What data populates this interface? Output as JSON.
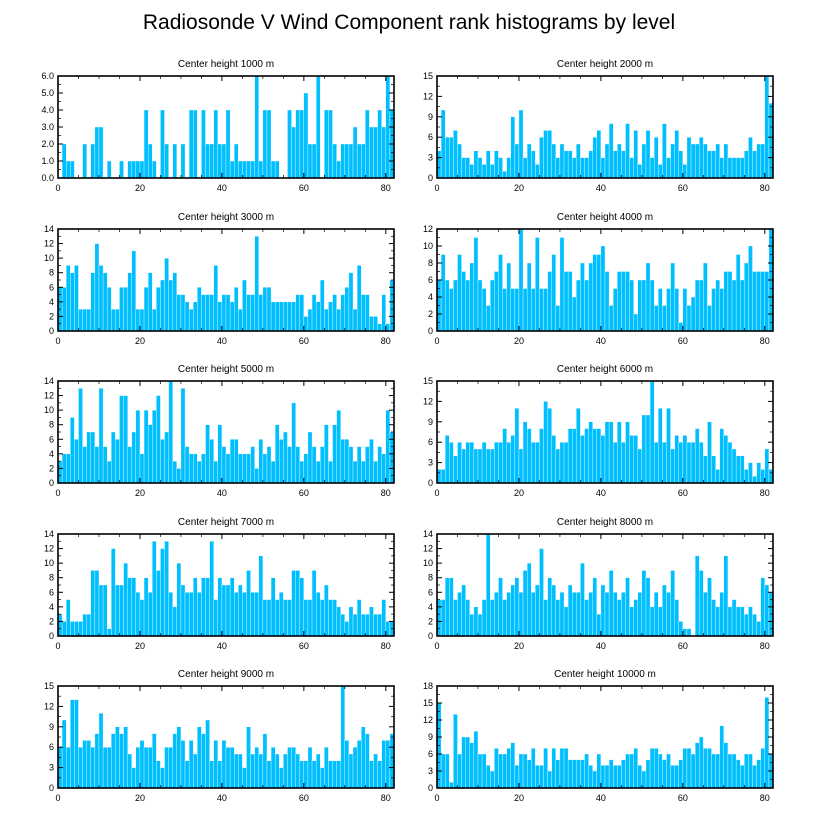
{
  "figure_title": "Radiosonde V Wind Component rank histograms by level",
  "chart_data": [
    {
      "type": "bar",
      "title": "Center height 1000 m",
      "xlim": [
        0,
        82
      ],
      "ylim": [
        0,
        6
      ],
      "xticks": [
        0,
        20,
        40,
        60,
        80
      ],
      "yticks": [
        0,
        1,
        2,
        3,
        4,
        5,
        6
      ],
      "ytick_labels": [
        "0.0",
        "1.0",
        "2.0",
        "3.0",
        "4.0",
        "5.0",
        "6.0"
      ],
      "values": [
        0,
        2,
        1,
        1,
        0,
        0,
        2,
        0,
        2,
        3,
        3,
        0,
        1,
        0,
        0,
        1,
        0,
        1,
        1,
        1,
        1,
        4,
        2,
        1,
        0,
        4,
        2,
        0,
        2,
        0,
        2,
        0,
        4,
        4,
        0,
        4,
        2,
        2,
        4,
        2,
        2,
        4,
        1,
        2,
        1,
        1,
        1,
        1,
        6,
        1,
        4,
        4,
        1,
        1,
        0,
        0,
        4,
        3,
        4,
        4,
        5,
        2,
        2,
        6,
        0,
        4,
        4,
        2,
        1,
        2,
        2,
        2,
        3,
        2,
        2,
        4,
        3,
        3,
        4,
        3,
        6,
        4,
        2
      ]
    },
    {
      "type": "bar",
      "title": "Center height 2000 m",
      "xlim": [
        0,
        82
      ],
      "ylim": [
        0,
        15
      ],
      "xticks": [
        0,
        20,
        40,
        60,
        80
      ],
      "yticks": [
        0,
        3,
        6,
        9,
        12,
        15
      ],
      "values": [
        4,
        10,
        6,
        6,
        7,
        5,
        3,
        3,
        2,
        4,
        3,
        2,
        4,
        2,
        4,
        3,
        1,
        3,
        9,
        5,
        10,
        3,
        5,
        4,
        2,
        6,
        7,
        7,
        5,
        3,
        5,
        4,
        4,
        3,
        5,
        3,
        3,
        4,
        6,
        7,
        3,
        5,
        8,
        4,
        5,
        4,
        8,
        3,
        7,
        2,
        5,
        7,
        3,
        6,
        2,
        8,
        3,
        5,
        7,
        4,
        2,
        6,
        5,
        5,
        6,
        5,
        4,
        4,
        5,
        3,
        5,
        3,
        3,
        3,
        3,
        4,
        6,
        4,
        5,
        5,
        15,
        11
      ]
    },
    {
      "type": "bar",
      "title": "Center height 3000 m",
      "xlim": [
        0,
        82
      ],
      "ylim": [
        0,
        14
      ],
      "xticks": [
        0,
        20,
        40,
        60,
        80
      ],
      "yticks": [
        0,
        2,
        4,
        6,
        8,
        10,
        12,
        14
      ],
      "values": [
        6,
        6,
        9,
        8,
        9,
        3,
        3,
        3,
        8,
        12,
        9,
        8,
        6,
        3,
        3,
        6,
        6,
        8,
        11,
        3,
        3,
        6,
        8,
        3,
        6,
        7,
        10,
        7,
        8,
        5,
        5,
        4,
        3,
        4,
        6,
        5,
        5,
        5,
        9,
        4,
        5,
        5,
        4,
        6,
        3,
        7,
        5,
        5,
        13,
        5,
        6,
        6,
        4,
        4,
        4,
        4,
        4,
        4,
        5,
        5,
        2,
        3,
        5,
        4,
        7,
        3,
        4,
        5,
        3,
        5,
        6,
        8,
        3,
        9,
        5,
        5,
        2,
        2,
        1,
        5,
        1,
        7
      ]
    },
    {
      "type": "bar",
      "title": "Center height 4000 m",
      "xlim": [
        0,
        82
      ],
      "ylim": [
        0,
        12
      ],
      "xticks": [
        0,
        20,
        40,
        60,
        80
      ],
      "yticks": [
        0,
        2,
        4,
        6,
        8,
        10,
        12
      ],
      "values": [
        6,
        9,
        6,
        5,
        6,
        9,
        7,
        6,
        8,
        11,
        6,
        5,
        3,
        6,
        7,
        9,
        5,
        8,
        5,
        5,
        12,
        5,
        8,
        5,
        11,
        5,
        5,
        7,
        9,
        3,
        11,
        7,
        7,
        4,
        6,
        8,
        6,
        8,
        9,
        9,
        10,
        7,
        3,
        5,
        7,
        7,
        7,
        6,
        2,
        6,
        6,
        8,
        6,
        3,
        5,
        3,
        5,
        8,
        5,
        1,
        5,
        3,
        4,
        6,
        6,
        8,
        3,
        5,
        6,
        5,
        7,
        7,
        6,
        9,
        6,
        8,
        10,
        7,
        7,
        7,
        7,
        12
      ]
    },
    {
      "type": "bar",
      "title": "Center height 5000 m",
      "xlim": [
        0,
        82
      ],
      "ylim": [
        0,
        14
      ],
      "xticks": [
        0,
        20,
        40,
        60,
        80
      ],
      "yticks": [
        0,
        2,
        4,
        6,
        8,
        10,
        12,
        14
      ],
      "values": [
        3,
        4,
        4,
        9,
        6,
        13,
        5,
        7,
        7,
        5,
        13,
        5,
        3,
        7,
        6,
        12,
        12,
        5,
        7,
        10,
        4,
        10,
        8,
        10,
        12,
        6,
        7,
        14,
        3,
        2,
        13,
        5,
        4,
        4,
        3,
        4,
        8,
        6,
        3,
        8,
        5,
        4,
        6,
        6,
        4,
        4,
        4,
        5,
        2,
        6,
        4,
        5,
        3,
        8,
        6,
        7,
        5,
        11,
        5,
        3,
        4,
        7,
        5,
        3,
        5,
        8,
        3,
        8,
        10,
        6,
        6,
        5,
        3,
        5,
        3,
        5,
        6,
        3,
        5,
        4,
        10,
        7
      ]
    },
    {
      "type": "bar",
      "title": "Center height 6000 m",
      "xlim": [
        0,
        82
      ],
      "ylim": [
        0,
        15
      ],
      "xticks": [
        0,
        20,
        40,
        60,
        80
      ],
      "yticks": [
        0,
        3,
        6,
        9,
        12,
        15
      ],
      "values": [
        2,
        2,
        7,
        6,
        4,
        6,
        5,
        6,
        6,
        5,
        5,
        6,
        5,
        5,
        6,
        6,
        8,
        6,
        7,
        11,
        5,
        9,
        8,
        6,
        6,
        8,
        12,
        11,
        7,
        5,
        6,
        6,
        8,
        8,
        11,
        7,
        8,
        9,
        8,
        8,
        7,
        9,
        9,
        6,
        9,
        6,
        9,
        7,
        7,
        5,
        10,
        10,
        15,
        6,
        11,
        6,
        11,
        5,
        7,
        6,
        7,
        6,
        6,
        8,
        6,
        4,
        9,
        4,
        2,
        8,
        7,
        6,
        5,
        4,
        4,
        2,
        3,
        1,
        3,
        2,
        5,
        2
      ]
    },
    {
      "type": "bar",
      "title": "Center height 7000 m",
      "xlim": [
        0,
        82
      ],
      "ylim": [
        0,
        14
      ],
      "xticks": [
        0,
        20,
        40,
        60,
        80
      ],
      "yticks": [
        0,
        2,
        4,
        6,
        8,
        10,
        12,
        14
      ],
      "values": [
        3,
        2,
        5,
        2,
        2,
        2,
        3,
        3,
        9,
        9,
        7,
        7,
        1,
        12,
        7,
        7,
        10,
        8,
        8,
        6,
        5,
        8,
        6,
        13,
        9,
        12,
        13,
        6,
        4,
        10,
        7,
        6,
        6,
        8,
        6,
        8,
        8,
        13,
        5,
        8,
        7,
        7,
        8,
        6,
        7,
        6,
        9,
        6,
        6,
        11,
        5,
        5,
        8,
        5,
        6,
        5,
        5,
        9,
        9,
        8,
        5,
        5,
        9,
        6,
        5,
        7,
        5,
        5,
        4,
        3,
        2,
        4,
        3,
        5,
        3,
        3,
        4,
        3,
        3,
        5,
        2,
        2
      ]
    },
    {
      "type": "bar",
      "title": "Center height 8000 m",
      "xlim": [
        0,
        82
      ],
      "ylim": [
        0,
        14
      ],
      "xticks": [
        0,
        20,
        40,
        60,
        80
      ],
      "yticks": [
        0,
        2,
        4,
        6,
        8,
        10,
        12,
        14
      ],
      "values": [
        5,
        5,
        8,
        8,
        5,
        6,
        7,
        5,
        3,
        4,
        3,
        5,
        14,
        5,
        6,
        8,
        5,
        6,
        7,
        8,
        6,
        9,
        10,
        6,
        7,
        12,
        5,
        8,
        7,
        5,
        6,
        4,
        7,
        6,
        6,
        10,
        5,
        6,
        8,
        3,
        7,
        6,
        9,
        6,
        5,
        6,
        8,
        4,
        5,
        6,
        9,
        8,
        4,
        6,
        4,
        7,
        6,
        9,
        5,
        2,
        1,
        1,
        0,
        11,
        9,
        6,
        8,
        5,
        4,
        6,
        11,
        4,
        5,
        4,
        4,
        3,
        4,
        3,
        2,
        8,
        7,
        6
      ]
    },
    {
      "type": "bar",
      "title": "Center height 9000 m",
      "xlim": [
        0,
        82
      ],
      "ylim": [
        0,
        15
      ],
      "xticks": [
        0,
        20,
        40,
        60,
        80
      ],
      "yticks": [
        0,
        3,
        6,
        9,
        12,
        15
      ],
      "values": [
        6,
        10,
        6,
        13,
        13,
        6,
        7,
        7,
        6,
        8,
        11,
        6,
        6,
        8,
        9,
        8,
        9,
        5,
        3,
        6,
        7,
        6,
        6,
        8,
        4,
        3,
        6,
        6,
        8,
        9,
        7,
        4,
        7,
        5,
        9,
        8,
        10,
        4,
        7,
        4,
        7,
        6,
        6,
        5,
        5,
        3,
        9,
        5,
        6,
        5,
        8,
        4,
        6,
        5,
        3,
        5,
        6,
        6,
        5,
        4,
        4,
        6,
        4,
        5,
        3,
        6,
        4,
        4,
        4,
        15,
        7,
        5,
        6,
        7,
        9,
        8,
        4,
        5,
        4,
        7,
        7,
        8
      ]
    },
    {
      "type": "bar",
      "title": "Center height 10000 m",
      "xlim": [
        0,
        82
      ],
      "ylim": [
        0,
        18
      ],
      "xticks": [
        0,
        20,
        40,
        60,
        80
      ],
      "yticks": [
        0,
        3,
        6,
        9,
        12,
        15,
        18
      ],
      "values": [
        15,
        6,
        6,
        1,
        13,
        6,
        9,
        9,
        8,
        10,
        6,
        6,
        4,
        3,
        7,
        6,
        6,
        7,
        8,
        4,
        6,
        6,
        5,
        7,
        4,
        4,
        7,
        3,
        7,
        5,
        7,
        7,
        5,
        5,
        5,
        5,
        6,
        4,
        3,
        6,
        4,
        4,
        5,
        4,
        4,
        5,
        6,
        6,
        7,
        4,
        3,
        5,
        7,
        7,
        6,
        5,
        6,
        4,
        4,
        5,
        7,
        7,
        6,
        8,
        9,
        7,
        7,
        6,
        6,
        11,
        8,
        6,
        6,
        5,
        4,
        6,
        6,
        4,
        5,
        7,
        16,
        6,
        8
      ]
    }
  ]
}
